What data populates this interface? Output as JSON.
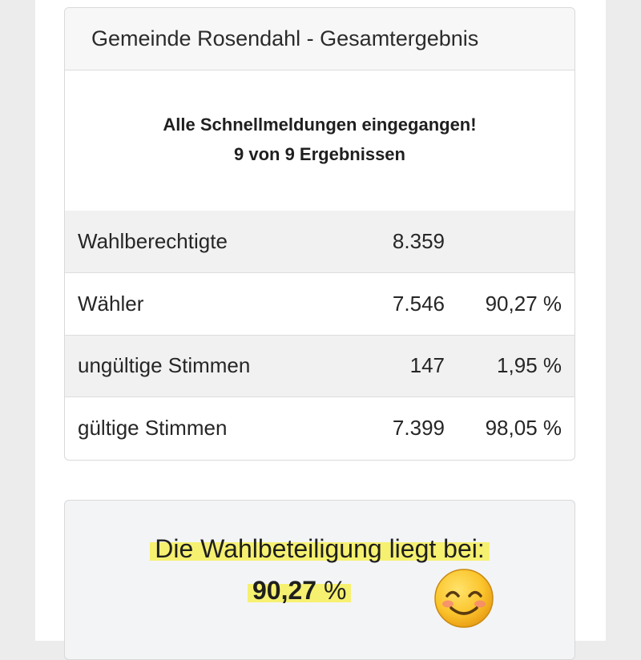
{
  "results": {
    "header_title": "Gemeinde Rosendahl - Gesamtergebnis",
    "status_line_1": "Alle Schnellmeldungen eingegangen!",
    "status_line_2": "9 von 9 Ergebnissen",
    "rows": [
      {
        "label": "Wahlberechtigte",
        "count": "8.359",
        "percent": ""
      },
      {
        "label": "Wähler",
        "count": "7.546",
        "percent": "90,27 %"
      },
      {
        "label": "ungültige Stimmen",
        "count": "147",
        "percent": "1,95 %"
      },
      {
        "label": "gültige Stimmen",
        "count": "7.399",
        "percent": "98,05 %"
      }
    ]
  },
  "turnout": {
    "title": "Die Wahlbeteiligung liegt bei:",
    "value": "90,27",
    "unit": "%",
    "emoji": "smiling-face-icon",
    "highlight_color": "#f6f05a"
  }
}
